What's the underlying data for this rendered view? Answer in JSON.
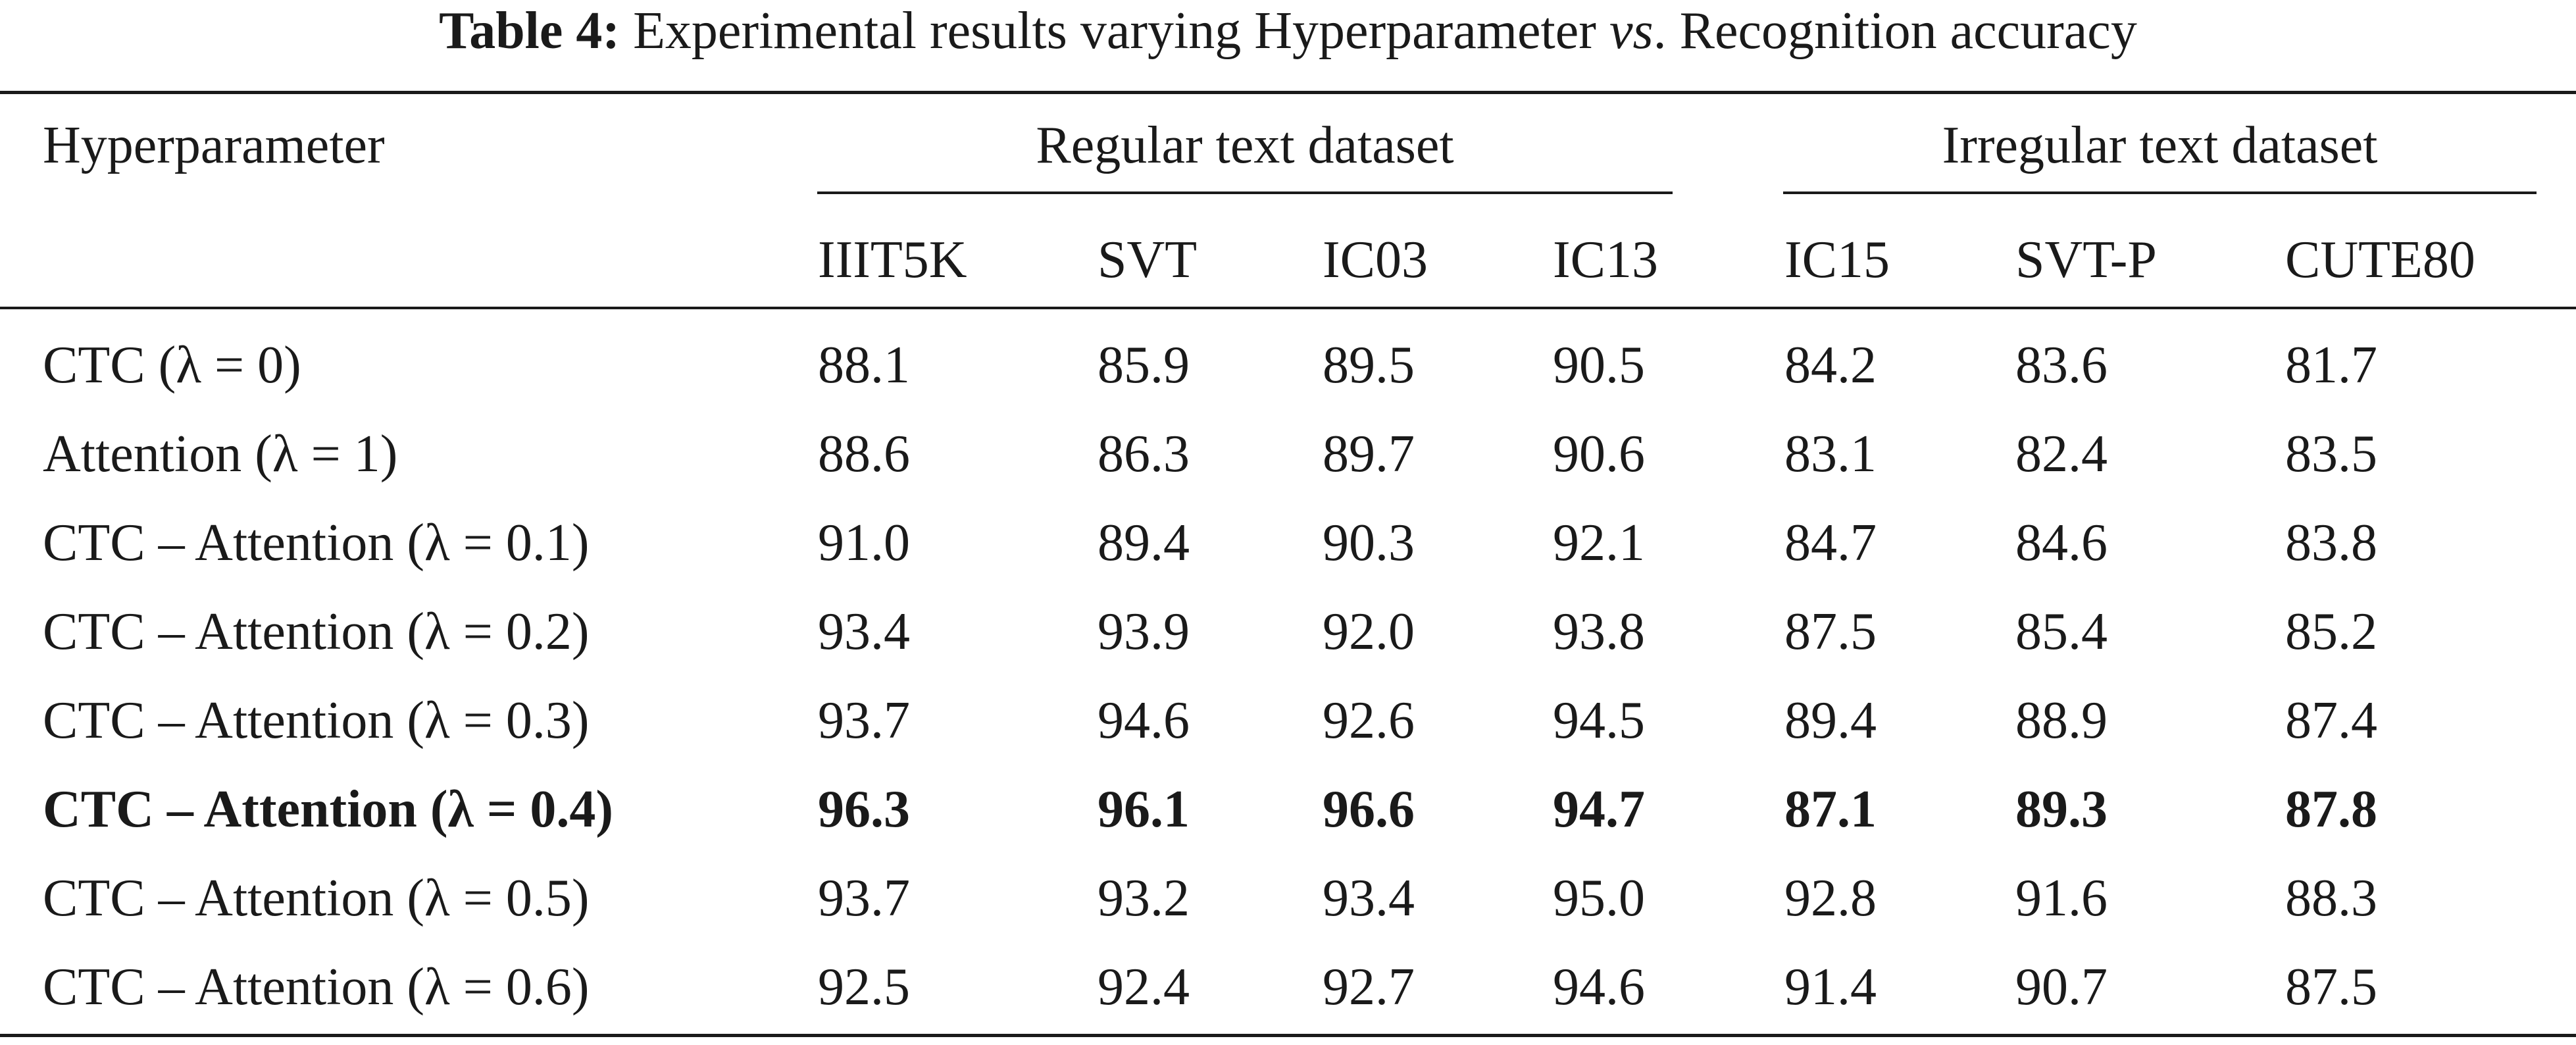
{
  "caption": {
    "label": "Table 4:",
    "text_before": " Experimental results varying Hyperparameter ",
    "text_italic": "vs",
    "text_after": ". Recognition accuracy"
  },
  "header": {
    "row_header": "Hyperparameter",
    "groups": [
      {
        "label": "Regular text dataset"
      },
      {
        "label": "Irregular text dataset"
      }
    ],
    "columns": [
      "IIIT5K",
      "SVT",
      "IC03",
      "IC13",
      "IC15",
      "SVT-P",
      "CUTE80"
    ]
  },
  "rows": [
    {
      "label": "CTC (λ = 0)",
      "values": [
        "88.1",
        "85.9",
        "89.5",
        "90.5",
        "84.2",
        "83.6",
        "81.7"
      ],
      "bold": false
    },
    {
      "label": "Attention (λ = 1)",
      "values": [
        "88.6",
        "86.3",
        "89.7",
        "90.6",
        "83.1",
        "82.4",
        "83.5"
      ],
      "bold": false
    },
    {
      "label": "CTC – Attention (λ = 0.1)",
      "values": [
        "91.0",
        "89.4",
        "90.3",
        "92.1",
        "84.7",
        "84.6",
        "83.8"
      ],
      "bold": false
    },
    {
      "label": "CTC – Attention (λ = 0.2)",
      "values": [
        "93.4",
        "93.9",
        "92.0",
        "93.8",
        "87.5",
        "85.4",
        "85.2"
      ],
      "bold": false
    },
    {
      "label": "CTC – Attention (λ = 0.3)",
      "values": [
        "93.7",
        "94.6",
        "92.6",
        "94.5",
        "89.4",
        "88.9",
        "87.4"
      ],
      "bold": false
    },
    {
      "label": "CTC – Attention (λ = 0.4)",
      "values": [
        "96.3",
        "96.1",
        "96.6",
        "94.7",
        "87.1",
        "89.3",
        "87.8"
      ],
      "bold": true
    },
    {
      "label": "CTC – Attention (λ = 0.5)",
      "values": [
        "93.7",
        "93.2",
        "93.4",
        "95.0",
        "92.8",
        "91.6",
        "88.3"
      ],
      "bold": false
    },
    {
      "label": "CTC – Attention (λ = 0.6)",
      "values": [
        "92.5",
        "92.4",
        "92.7",
        "94.6",
        "91.4",
        "90.7",
        "87.5"
      ],
      "bold": false
    }
  ]
}
